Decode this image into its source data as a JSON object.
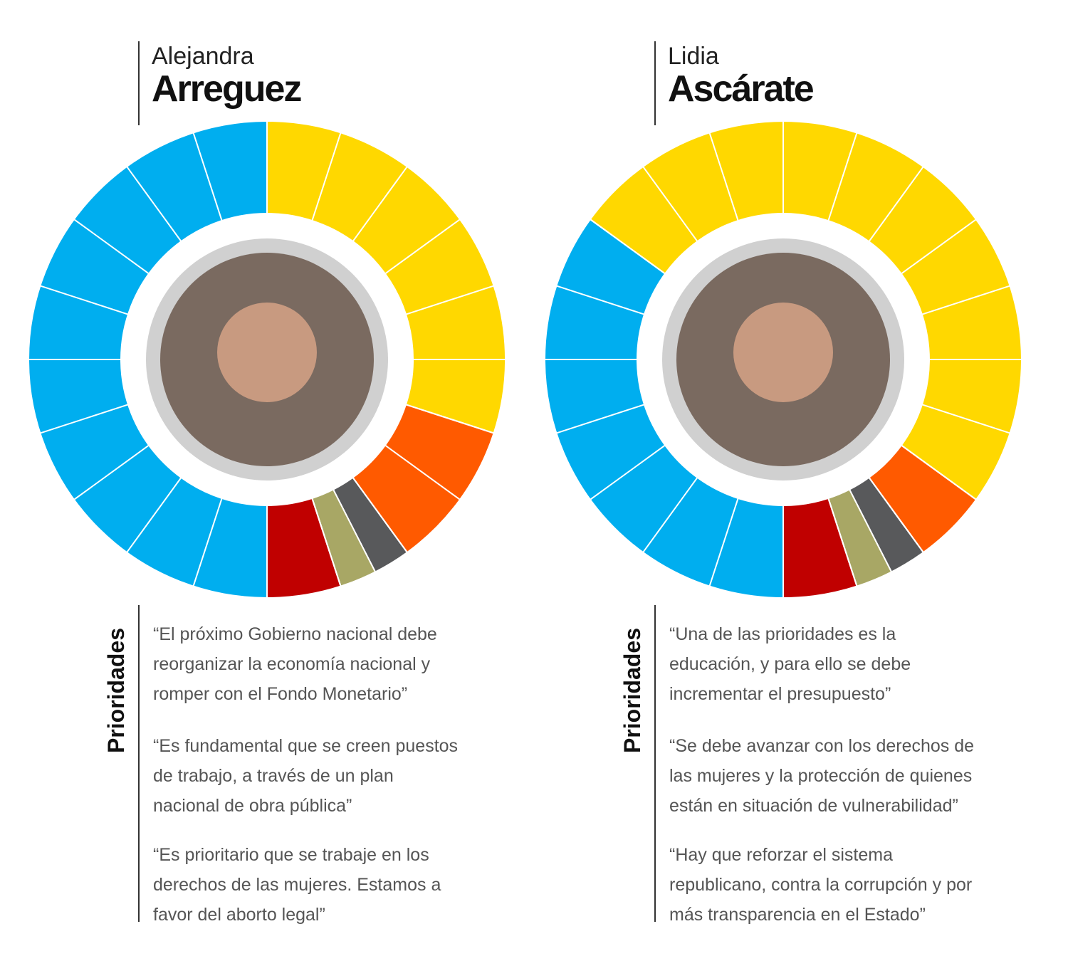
{
  "chart_data": [
    {
      "type": "pie",
      "values": [
        50,
        30,
        10,
        2.5,
        2.5,
        5
      ],
      "colors": [
        "#00aeef",
        "#ffd800",
        "#ff5a00",
        "#58595b",
        "#a8a765",
        "#c00000"
      ]
    },
    {
      "type": "pie",
      "values": [
        35,
        50,
        5,
        2.5,
        2.5,
        5
      ],
      "colors": [
        "#00aeef",
        "#ffd800",
        "#ff5a00",
        "#58595b",
        "#a8a765",
        "#c00000"
      ]
    }
  ],
  "panels": [
    {
      "first_name": "Alejandra",
      "last_name": "Arreguez",
      "label": "Prioridades",
      "quotes": [
        [
          "“El próximo Gobierno nacional debe",
          "reorganizar la economía nacional y",
          "romper con el Fondo Monetario”"
        ],
        [
          "“Es fundamental que se creen puestos",
          "de trabajo, a través de un plan",
          "nacional de obra pública”"
        ],
        [
          "“Es prioritario que se trabaje en los",
          "derechos de las mujeres. Estamos a",
          "favor del aborto legal”"
        ]
      ]
    },
    {
      "first_name": "Lidia",
      "last_name": "Ascárate",
      "label": "Prioridades",
      "quotes": [
        [
          "“Una de las prioridades es la",
          "educación, y para ello se debe",
          "incrementar el presupuesto”"
        ],
        [
          "“Se debe avanzar con los derechos de",
          "las mujeres y la protección de quienes",
          "están en situación de vulnerabilidad”"
        ],
        [
          "“Hay que reforzar el sistema",
          "republicano, contra la corrupción y por",
          "más transparencia en el Estado”"
        ]
      ]
    }
  ]
}
